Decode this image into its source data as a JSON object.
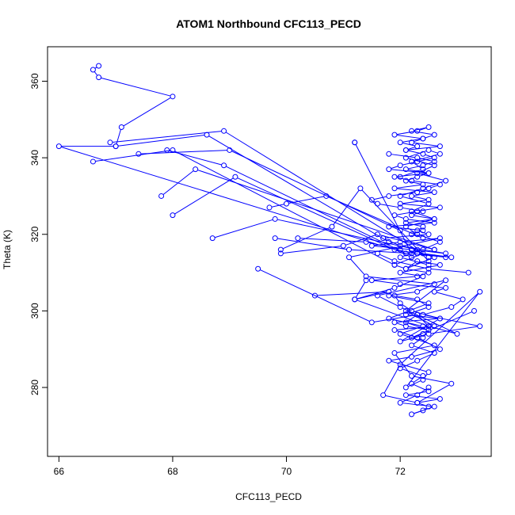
{
  "chart_data": {
    "type": "scatter",
    "title": "ATOM1 Northbound CFC113_PECD",
    "xlabel": "CFC113_PECD",
    "ylabel": "Theta (K)",
    "xlim": [
      65.8,
      73.6
    ],
    "ylim": [
      262,
      369
    ],
    "xticks": [
      66,
      68,
      70,
      72
    ],
    "yticks": [
      280,
      300,
      320,
      340,
      360
    ],
    "grid": false,
    "legend": "none",
    "connected": true,
    "color": "#0000ff",
    "series": [
      {
        "x": [
          69.5,
          71.5,
          72.3,
          72.5,
          73.0,
          72.0,
          71.6,
          72.8,
          72.1,
          72.6,
          71.9,
          72.3,
          72.7,
          72.2,
          71.8,
          72.5,
          72.4,
          72.1,
          73.4,
          72.0,
          71.7,
          72.3,
          72.9,
          72.2,
          71.9,
          72.6,
          72.0,
          72.4,
          71.8,
          72.5,
          71.8,
          72.3,
          72.6,
          71.4,
          71.1,
          72.7,
          72.0,
          71.5,
          72.2,
          72.3,
          72.9,
          72.4,
          71.9,
          72.1,
          72.5,
          72.3,
          71.5,
          72.0,
          72.8,
          72.6,
          73.1,
          72.9,
          72.4,
          73.4,
          72.5,
          72.0,
          72.7,
          72.2,
          72.0,
          71.9,
          72.3,
          72.5,
          72.1,
          72.7,
          71.9,
          72.1,
          72.5,
          72.4,
          72.2,
          73.3
        ],
        "y": [
          311,
          297,
          299,
          296,
          294,
          301,
          304,
          308,
          300,
          296,
          295,
          293,
          290,
          288,
          287,
          284,
          282,
          280,
          305,
          286,
          278,
          276,
          281,
          283,
          289,
          291,
          294,
          296,
          298,
          302,
          304,
          305,
          307,
          309,
          314,
          319,
          318,
          317,
          316,
          315,
          314,
          315,
          312,
          311,
          310,
          309,
          308,
          307,
          306,
          305,
          303,
          301,
          299,
          296,
          294,
          292,
          298,
          300,
          302,
          304,
          303,
          301,
          299,
          298,
          297,
          296,
          295,
          294,
          293,
          300
        ]
      },
      {
        "x": [
          70.5,
          71.8,
          71.2,
          71.9,
          72.4,
          72.0,
          72.7,
          72.3,
          72.1,
          72.6,
          72.2,
          72.8,
          72.0,
          71.7,
          72.5,
          72.3,
          72.4,
          72.1,
          72.6,
          72.2,
          72.4,
          72.0,
          71.6,
          71.5,
          71.8,
          72.3,
          72.5,
          72.7,
          72.2,
          71.9,
          72.5,
          72.1,
          72.4,
          72.6,
          72.3,
          71.8
        ],
        "y": [
          304,
          305,
          303,
          306,
          309,
          310,
          312,
          313,
          311,
          314,
          316,
          315,
          317,
          319,
          320,
          321,
          322,
          323,
          324,
          325,
          326,
          327,
          328,
          329,
          330,
          331,
          332,
          333,
          334,
          335,
          336,
          337,
          338,
          339,
          340,
          341
        ]
      },
      {
        "x": [
          72.1,
          72.3,
          72.0,
          72.4,
          72.6,
          72.2,
          72.5,
          72.3,
          71.9,
          72.4,
          72.2,
          72.7,
          72.1,
          72.4,
          72.6,
          72.3,
          72.0,
          71.8,
          72.5,
          72.3,
          72.1,
          72.4,
          71.9,
          72.6,
          72.2,
          72.5,
          72.0,
          72.7,
          72.3,
          71.9,
          72.1,
          72.6,
          71.8,
          72.4,
          72.2
        ],
        "y": [
          342,
          343,
          344,
          345,
          346,
          347,
          348,
          347,
          346,
          345,
          344,
          343,
          342,
          341,
          340,
          339,
          338,
          337,
          336,
          335,
          334,
          333,
          332,
          331,
          330,
          329,
          328,
          327,
          326,
          325,
          324,
          323,
          322,
          321,
          320
        ]
      },
      {
        "x": [
          72.3,
          72.1,
          72.5,
          72.4,
          72.2,
          72.6,
          72.3,
          72.0,
          72.4,
          72.2,
          72.5,
          72.1,
          72.7,
          72.3,
          72.5,
          72.4,
          72.2,
          72.6,
          72.0,
          72.3,
          72.5
        ],
        "y": [
          299,
          297,
          295,
          293,
          291,
          289,
          287,
          285,
          283,
          281,
          279,
          278,
          277,
          276,
          275,
          274,
          273,
          275,
          276,
          278,
          280
        ]
      },
      {
        "x": [
          72.5,
          72.0,
          72.4,
          72.7,
          72.3,
          72.1,
          72.6,
          72.2,
          72.5,
          72.0,
          72.4,
          72.8,
          72.3,
          72.6,
          72.1,
          72.5,
          72.7,
          72.2,
          72.4,
          72.0
        ],
        "y": [
          312,
          314,
          316,
          318,
          320,
          322,
          324,
          326,
          328,
          330,
          332,
          334,
          336,
          338,
          340,
          342,
          341,
          339,
          337,
          335
        ]
      },
      {
        "x": [
          66.7,
          66.6,
          66.7,
          68.0,
          67.1,
          67.0,
          66.0,
          71.9,
          72.3
        ],
        "y": [
          364,
          363,
          361,
          356,
          348,
          343,
          343,
          316,
          315
        ]
      },
      {
        "x": [
          66.9,
          68.9,
          72.5
        ],
        "y": [
          344,
          347,
          314
        ]
      },
      {
        "x": [
          67.0,
          68.6,
          71.8
        ],
        "y": [
          343,
          346,
          318
        ]
      },
      {
        "x": [
          66.6,
          68.0,
          71.9
        ],
        "y": [
          339,
          342,
          312
        ]
      },
      {
        "x": [
          67.4,
          69.0,
          72.0
        ],
        "y": [
          341,
          342,
          321
        ]
      },
      {
        "x": [
          67.9,
          68.9,
          72.1
        ],
        "y": [
          342,
          338,
          315
        ]
      },
      {
        "x": [
          67.8,
          68.4,
          72.6
        ],
        "y": [
          330,
          337,
          316
        ]
      },
      {
        "x": [
          68.0,
          69.1,
          72.2
        ],
        "y": [
          325,
          335,
          314
        ]
      },
      {
        "x": [
          68.7,
          69.8,
          72.3
        ],
        "y": [
          319,
          324,
          316
        ]
      },
      {
        "x": [
          69.7,
          70.0,
          70.7,
          72.4
        ],
        "y": [
          327,
          328,
          330,
          319
        ]
      },
      {
        "x": [
          69.8,
          71.1,
          72.2
        ],
        "y": [
          319,
          316,
          315
        ]
      },
      {
        "x": [
          69.9,
          70.8,
          71.3,
          72.5
        ],
        "y": [
          316,
          322,
          332,
          313
        ]
      },
      {
        "x": [
          69.9,
          71.0,
          71.6,
          72.6
        ],
        "y": [
          315,
          317,
          320,
          316
        ]
      },
      {
        "x": [
          70.2,
          71.4,
          72.0
        ],
        "y": [
          319,
          318,
          316
        ]
      },
      {
        "x": [
          71.2,
          71.2,
          72.2,
          72.8
        ],
        "y": [
          344,
          344,
          315,
          314
        ]
      },
      {
        "x": [
          71.4,
          71.2,
          72.5
        ],
        "y": [
          308,
          303,
          296
        ]
      },
      {
        "x": [
          71.6,
          71.9,
          72.5,
          73.2
        ],
        "y": [
          315,
          313,
          311,
          310
        ]
      }
    ]
  }
}
